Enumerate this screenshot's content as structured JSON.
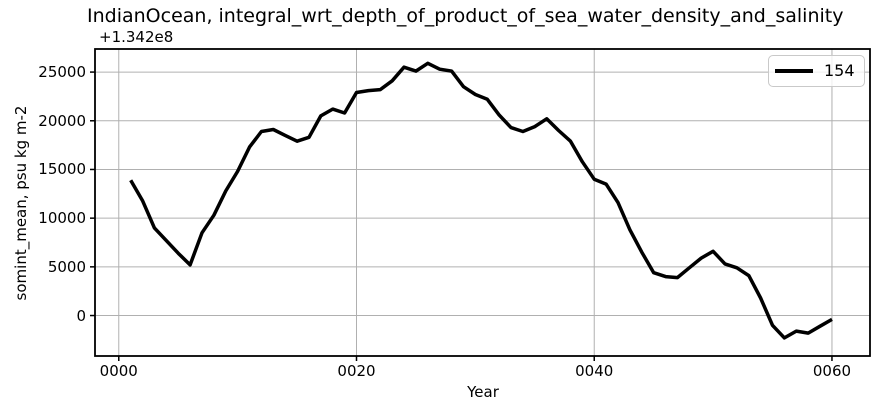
{
  "figure": {
    "background": "#ffffff"
  },
  "chart_data": {
    "type": "line",
    "title": "IndianOcean, integral_wrt_depth_of_product_of_sea_water_density_and_salinity",
    "xlabel": "Year",
    "ylabel": "somint_mean, psu kg m-2",
    "y_offset_text": "+1.342e8",
    "legend": {
      "label": "154",
      "location": "upper right"
    },
    "grid": true,
    "xlim": [
      -2.0,
      63.2
    ],
    "ylim": [
      -4155,
      27370
    ],
    "xticks": {
      "positions": [
        0,
        20,
        40,
        60
      ],
      "labels": [
        "0000",
        "0020",
        "0040",
        "0060"
      ]
    },
    "yticks": {
      "positions": [
        0,
        5000,
        10000,
        15000,
        20000,
        25000
      ],
      "labels": [
        "0",
        "5000",
        "10000",
        "15000",
        "20000",
        "25000"
      ]
    },
    "series": [
      {
        "name": "154",
        "color": "#000000",
        "line_width": 3.5,
        "x": [
          1,
          2,
          3,
          4,
          5,
          6,
          7,
          8,
          9,
          10,
          11,
          12,
          13,
          14,
          15,
          16,
          17,
          18,
          19,
          20,
          21,
          22,
          23,
          24,
          25,
          26,
          27,
          28,
          29,
          30,
          31,
          32,
          33,
          34,
          35,
          36,
          37,
          38,
          39,
          40,
          41,
          42,
          43,
          44,
          45,
          46,
          47,
          48,
          49,
          50,
          51,
          52,
          53,
          54,
          55,
          56,
          57,
          58,
          59,
          60
        ],
        "y": [
          13900,
          11800,
          9000,
          7700,
          6400,
          5200,
          8500,
          10300,
          12800,
          14800,
          17300,
          18900,
          19100,
          18500,
          17900,
          18300,
          20500,
          21200,
          20800,
          22900,
          23100,
          23200,
          24100,
          25500,
          25100,
          25900,
          25300,
          25100,
          23500,
          22700,
          22200,
          20600,
          19300,
          18900,
          19400,
          20200,
          19000,
          17900,
          15800,
          14000,
          13500,
          11600,
          8800,
          6500,
          4400,
          4000,
          3900,
          4900,
          5900,
          6600,
          5300,
          4900,
          4100,
          1800,
          -1000,
          -2300,
          -1600,
          -1800,
          -1100,
          -400
        ]
      }
    ],
    "colors": {
      "grid": "#b0b0b0",
      "spine": "#000000",
      "tick": "#000000",
      "legend_border": "#c9c9c9",
      "legend_bg": "#ffffff"
    }
  }
}
